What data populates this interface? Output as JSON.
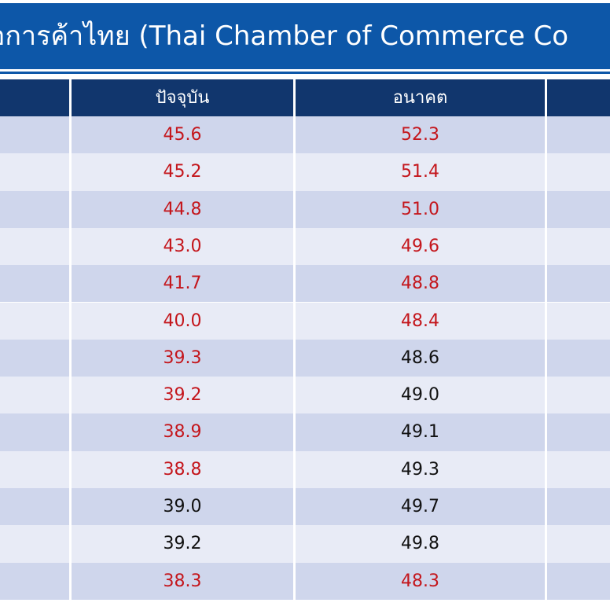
{
  "title": "อการค้าไทย (Thai Chamber of Commerce Co",
  "table": {
    "headers": [
      "",
      "ปัจจุบัน",
      "อนาคต",
      ""
    ],
    "rows": [
      {
        "current": "45.6",
        "current_color": "#c4161c",
        "future": "52.3",
        "future_color": "#c4161c"
      },
      {
        "current": "45.2",
        "current_color": "#c4161c",
        "future": "51.4",
        "future_color": "#c4161c"
      },
      {
        "current": "44.8",
        "current_color": "#c4161c",
        "future": "51.0",
        "future_color": "#c4161c"
      },
      {
        "current": "43.0",
        "current_color": "#c4161c",
        "future": "49.6",
        "future_color": "#c4161c"
      },
      {
        "current": "41.7",
        "current_color": "#c4161c",
        "future": "48.8",
        "future_color": "#c4161c"
      },
      {
        "current": "40.0",
        "current_color": "#c4161c",
        "future": "48.4",
        "future_color": "#c4161c"
      },
      {
        "current": "39.3",
        "current_color": "#c4161c",
        "future": "48.6",
        "future_color": "#111111"
      },
      {
        "current": "39.2",
        "current_color": "#c4161c",
        "future": "49.0",
        "future_color": "#111111"
      },
      {
        "current": "38.9",
        "current_color": "#c4161c",
        "future": "49.1",
        "future_color": "#111111"
      },
      {
        "current": "38.8",
        "current_color": "#c4161c",
        "future": "49.3",
        "future_color": "#111111"
      },
      {
        "current": "39.0",
        "current_color": "#111111",
        "future": "49.7",
        "future_color": "#111111"
      },
      {
        "current": "39.2",
        "current_color": "#111111",
        "future": "49.8",
        "future_color": "#111111"
      },
      {
        "current": "38.3",
        "current_color": "#c4161c",
        "future": "48.3",
        "future_color": "#c4161c"
      }
    ]
  }
}
